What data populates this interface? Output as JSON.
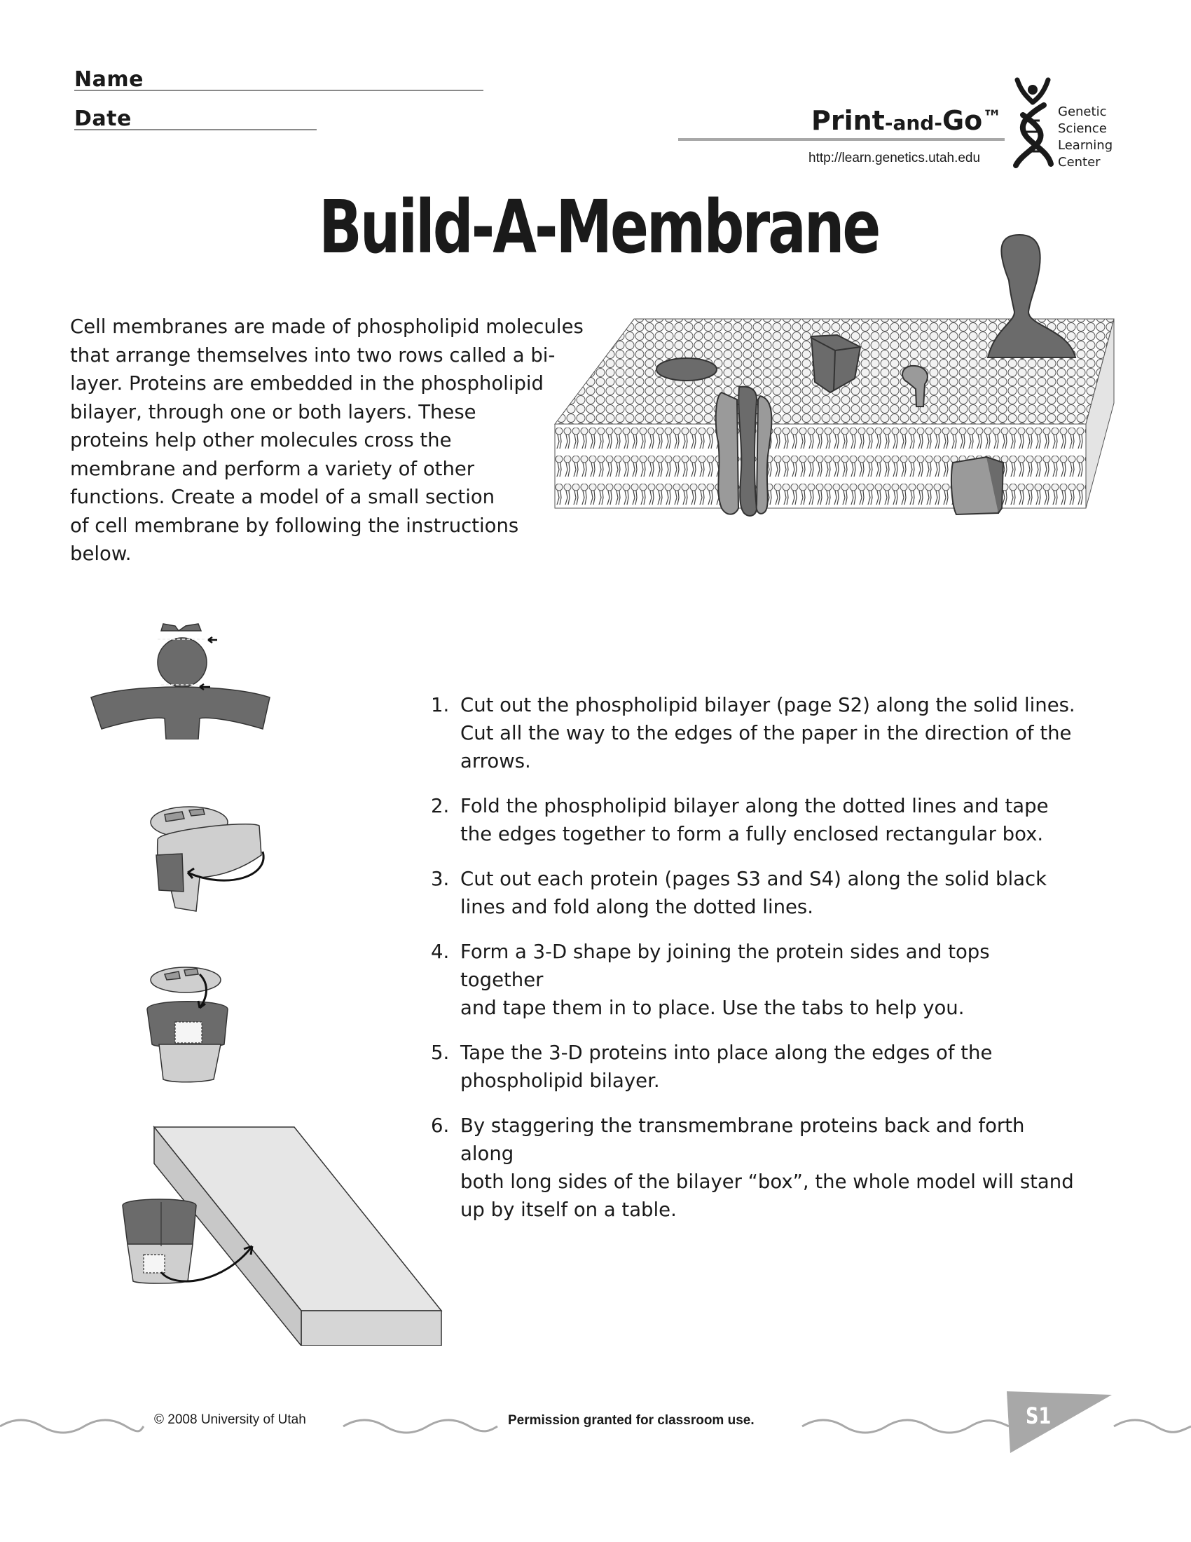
{
  "header": {
    "name_label": "Name",
    "date_label": "Date",
    "brand": {
      "print": "Print",
      "and": "-and-",
      "go": "Go",
      "tm": "™"
    },
    "url": "http://learn.genetics.utah.edu",
    "org_lines": [
      "Genetic",
      "Science",
      "Learning",
      "Center"
    ]
  },
  "title": "Build-A-Membrane",
  "intro_lines": [
    "Cell membranes are made of phospholipid molecules",
    "that arrange themselves into two rows called a  bi-",
    "layer.  Proteins are embedded in the phospholipid",
    "bilayer, through one or both layers. These",
    "proteins help other molecules cross the",
    "membrane and perform a variety of  other",
    "functions. Create a model of a small section",
    "of cell membrane by following the instructions",
    "below."
  ],
  "steps": [
    {
      "num": "1.",
      "lines": [
        "Cut out the phospholipid bilayer (page S2) along the solid lines.",
        "Cut all the way to the edges of the paper in the direction of the",
        "arrows."
      ]
    },
    {
      "num": "2.",
      "lines": [
        "Fold the phospholipid bilayer along the dotted lines  and tape",
        "the edges together to form a fully enclosed rectangular box."
      ]
    },
    {
      "num": "3.",
      "lines": [
        "Cut out each protein  (pages S3 and S4) along the solid black",
        "lines and fold along the dotted lines."
      ]
    },
    {
      "num": "4.",
      "lines": [
        "Form a 3-D shape by joining the protein sides and tops together",
        "and tape them in to place.  Use the tabs to help you."
      ]
    },
    {
      "num": "5.",
      "lines": [
        "Tape the 3-D proteins into place along the edges of the",
        "phospholipid bilayer."
      ]
    },
    {
      "num": "6.",
      "lines": [
        "By staggering the transmembrane proteins back and forth along",
        "both long sides of the bilayer “box”, the whole model will stand",
        "up by itself on a table."
      ]
    }
  ],
  "footer": {
    "copyright": "© 2008 University of Utah",
    "permission": "Permission granted for classroom use.",
    "page": "S1"
  },
  "colors": {
    "dark_gray": "#6b6b6b",
    "mid_gray": "#9a9a9a",
    "light_gray": "#cfcfcf",
    "line": "#8a8a8a"
  }
}
